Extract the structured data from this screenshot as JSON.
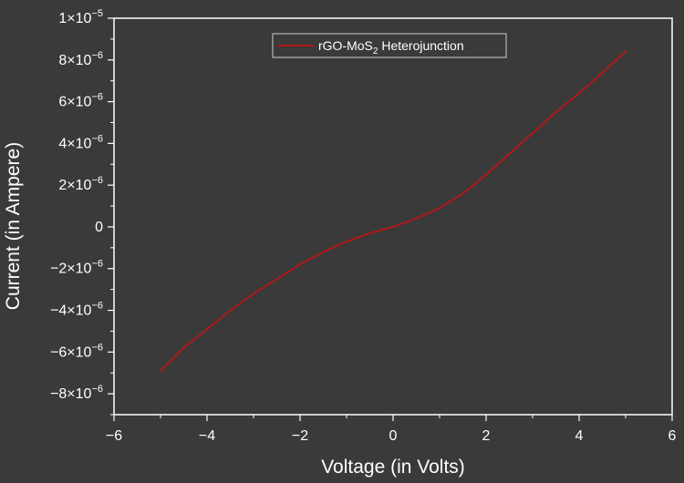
{
  "chart_data": {
    "type": "line",
    "title": "",
    "xlabel": "Voltage (in Volts)",
    "ylabel": "Current (in Ampere)",
    "xlim": [
      -6,
      6
    ],
    "ylim": [
      -9e-06,
      1e-05
    ],
    "x_ticks": [
      -6,
      -4,
      -2,
      0,
      2,
      4,
      6
    ],
    "x_tick_labels": [
      "−6",
      "−4",
      "−2",
      "0",
      "2",
      "4",
      "6"
    ],
    "y_ticks": [
      -8e-06,
      -6e-06,
      -4e-06,
      -2e-06,
      0,
      2e-06,
      4e-06,
      6e-06,
      8e-06,
      1e-05
    ],
    "y_tick_labels": [
      {
        "mant": "−8×10",
        "exp": "−6"
      },
      {
        "mant": "−6×10",
        "exp": "−6"
      },
      {
        "mant": "−4×10",
        "exp": "−6"
      },
      {
        "mant": "−2×10",
        "exp": "−6"
      },
      {
        "mant": "0",
        "exp": ""
      },
      {
        "mant": "2×10",
        "exp": "−6"
      },
      {
        "mant": "4×10",
        "exp": "−6"
      },
      {
        "mant": "6×10",
        "exp": "−6"
      },
      {
        "mant": "8×10",
        "exp": "−6"
      },
      {
        "mant": "1×10",
        "exp": "−5"
      }
    ],
    "grid": false,
    "legend_position": "top-center",
    "colors": {
      "background": "#3a3a3a",
      "axes": "#ffffff",
      "series": "#b01818"
    },
    "series": [
      {
        "name_parts": [
          "rGO-MoS",
          "2",
          " Heterojunction"
        ],
        "color": "#b01818",
        "x": [
          -5,
          -4.5,
          -4,
          -3.5,
          -3,
          -2.5,
          -2,
          -1.5,
          -1,
          -0.5,
          0,
          0.5,
          1,
          1.5,
          2,
          2.5,
          3,
          3.5,
          4,
          4.5,
          5
        ],
        "y": [
          -6.9e-06,
          -5.8e-06,
          -4.9e-06,
          -4e-06,
          -3.2e-06,
          -2.5e-06,
          -1.8e-06,
          -1.2e-06,
          -7e-07,
          -3e-07,
          0,
          4e-07,
          9e-07,
          1.6e-06,
          2.5e-06,
          3.5e-06,
          4.5e-06,
          5.5e-06,
          6.4e-06,
          7.4e-06,
          8.4e-06
        ]
      }
    ]
  }
}
